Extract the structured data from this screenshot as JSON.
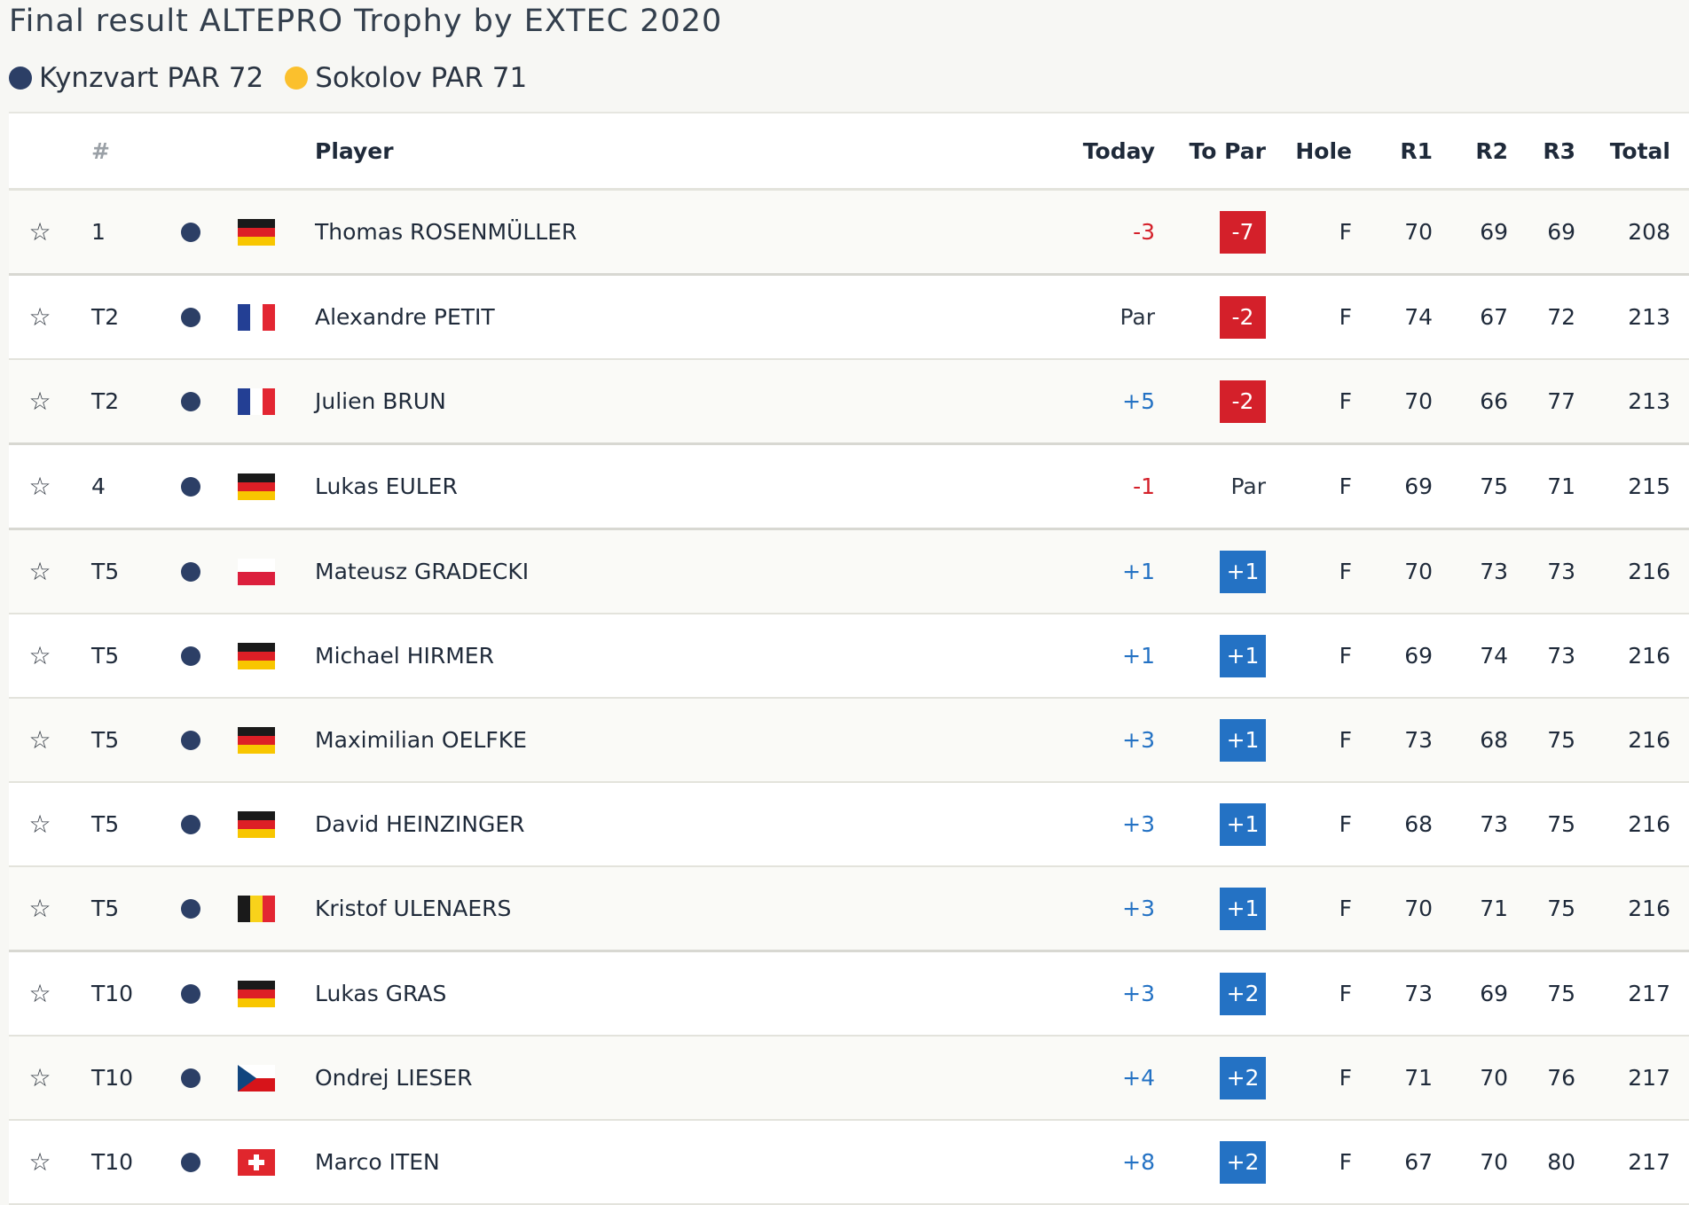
{
  "title": "Final result ALTEPRO Trophy by EXTEC 2020",
  "legend": [
    {
      "label": "Kynzvart PAR 72",
      "color": "#2c3f66"
    },
    {
      "label": "Sokolov PAR 71",
      "color": "#fbc02d"
    }
  ],
  "headers": {
    "pos": "#",
    "player": "Player",
    "today": "Today",
    "topar": "To Par",
    "hole": "Hole",
    "r1": "R1",
    "r2": "R2",
    "r3": "R3",
    "total": "Total"
  },
  "colors": {
    "under_par": "#d4202a",
    "over_par": "#2472c4",
    "even": "#2a3442",
    "course": "#2c3f66"
  },
  "rows": [
    {
      "pos": "1",
      "flag": "germany-flag",
      "player": "Thomas ROSENMÜLLER",
      "today": "-3",
      "topar": "-7",
      "hole": "F",
      "r1": "70",
      "r2": "69",
      "r3": "69",
      "total": "208"
    },
    {
      "pos": "T2",
      "flag": "france-flag",
      "player": "Alexandre PETIT",
      "today": "Par",
      "topar": "-2",
      "hole": "F",
      "r1": "74",
      "r2": "67",
      "r3": "72",
      "total": "213"
    },
    {
      "pos": "T2",
      "flag": "france-flag",
      "player": "Julien BRUN",
      "today": "+5",
      "topar": "-2",
      "hole": "F",
      "r1": "70",
      "r2": "66",
      "r3": "77",
      "total": "213"
    },
    {
      "pos": "4",
      "flag": "germany-flag",
      "player": "Lukas EULER",
      "today": "-1",
      "topar": "Par",
      "hole": "F",
      "r1": "69",
      "r2": "75",
      "r3": "71",
      "total": "215"
    },
    {
      "pos": "T5",
      "flag": "poland-flag",
      "player": "Mateusz GRADECKI",
      "today": "+1",
      "topar": "+1",
      "hole": "F",
      "r1": "70",
      "r2": "73",
      "r3": "73",
      "total": "216"
    },
    {
      "pos": "T5",
      "flag": "germany-flag",
      "player": "Michael HIRMER",
      "today": "+1",
      "topar": "+1",
      "hole": "F",
      "r1": "69",
      "r2": "74",
      "r3": "73",
      "total": "216"
    },
    {
      "pos": "T5",
      "flag": "germany-flag",
      "player": "Maximilian OELFKE",
      "today": "+3",
      "topar": "+1",
      "hole": "F",
      "r1": "73",
      "r2": "68",
      "r3": "75",
      "total": "216"
    },
    {
      "pos": "T5",
      "flag": "germany-flag",
      "player": "David HEINZINGER",
      "today": "+3",
      "topar": "+1",
      "hole": "F",
      "r1": "68",
      "r2": "73",
      "r3": "75",
      "total": "216"
    },
    {
      "pos": "T5",
      "flag": "belgium-flag",
      "player": "Kristof ULENAERS",
      "today": "+3",
      "topar": "+1",
      "hole": "F",
      "r1": "70",
      "r2": "71",
      "r3": "75",
      "total": "216"
    },
    {
      "pos": "T10",
      "flag": "germany-flag",
      "player": "Lukas GRAS",
      "today": "+3",
      "topar": "+2",
      "hole": "F",
      "r1": "73",
      "r2": "69",
      "r3": "75",
      "total": "217"
    },
    {
      "pos": "T10",
      "flag": "czech-flag",
      "player": "Ondrej LIESER",
      "today": "+4",
      "topar": "+2",
      "hole": "F",
      "r1": "71",
      "r2": "70",
      "r3": "76",
      "total": "217"
    },
    {
      "pos": "T10",
      "flag": "switzerland-flag",
      "player": "Marco ITEN",
      "today": "+8",
      "topar": "+2",
      "hole": "F",
      "r1": "67",
      "r2": "70",
      "r3": "80",
      "total": "217"
    }
  ]
}
